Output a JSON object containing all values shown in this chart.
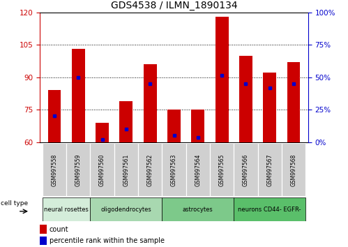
{
  "title": "GDS4538 / ILMN_1890134",
  "samples": [
    "GSM997558",
    "GSM997559",
    "GSM997560",
    "GSM997561",
    "GSM997562",
    "GSM997563",
    "GSM997564",
    "GSM997565",
    "GSM997566",
    "GSM997567",
    "GSM997568"
  ],
  "counts": [
    84,
    103,
    69,
    79,
    96,
    75,
    75,
    118,
    100,
    92,
    97
  ],
  "percentile_left_axis": [
    72,
    90,
    61,
    66,
    87,
    63,
    62,
    91,
    87,
    85,
    87
  ],
  "ylim_left": [
    60,
    120
  ],
  "yticks_left": [
    60,
    75,
    90,
    105,
    120
  ],
  "ylim_right": [
    0,
    100
  ],
  "yticks_right": [
    0,
    25,
    50,
    75,
    100
  ],
  "cell_groups": [
    {
      "label": "neural rosettes",
      "start": 0,
      "end": 2,
      "color": "#d4edda"
    },
    {
      "label": "oligodendrocytes",
      "start": 2,
      "end": 5,
      "color": "#a8d8b0"
    },
    {
      "label": "astrocytes",
      "start": 5,
      "end": 8,
      "color": "#7dc98a"
    },
    {
      "label": "neurons CD44- EGFR-",
      "start": 8,
      "end": 11,
      "color": "#5abf6a"
    }
  ],
  "bar_color": "#cc0000",
  "percentile_color": "#0000cc",
  "bar_width": 0.55,
  "sample_box_color": "#d0d0d0",
  "grid_color": "#000000",
  "legend_count_color": "#cc0000",
  "legend_pct_color": "#0000cc",
  "left_axis_color": "#cc0000",
  "right_axis_color": "#0000cc"
}
